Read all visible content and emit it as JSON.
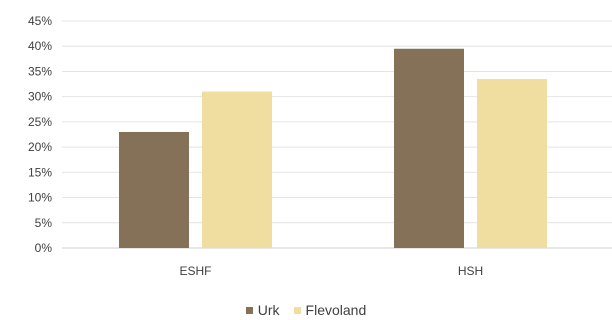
{
  "chart_data": {
    "type": "bar",
    "categories": [
      "ESHF",
      "HSH"
    ],
    "series": [
      {
        "name": "Urk",
        "values": [
          23,
          39.5
        ],
        "color": "#857158"
      },
      {
        "name": "Flevoland",
        "values": [
          31,
          33.5
        ],
        "color": "#f0dda0"
      }
    ],
    "yticks": [
      "0%",
      "5%",
      "10%",
      "15%",
      "20%",
      "25%",
      "30%",
      "35%",
      "40%",
      "45%"
    ],
    "ylim": [
      0,
      45
    ],
    "grid": true,
    "legend": "bottom"
  }
}
